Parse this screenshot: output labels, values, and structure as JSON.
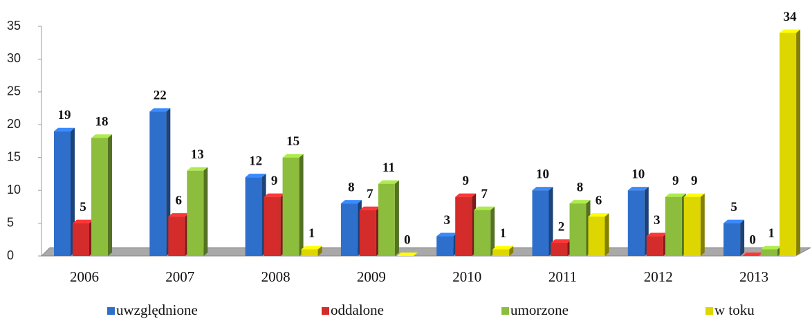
{
  "chart_data": {
    "type": "bar",
    "categories": [
      "2006",
      "2007",
      "2008",
      "2009",
      "2010",
      "2011",
      "2012",
      "2013"
    ],
    "series": [
      {
        "name": "uwzględnione",
        "color": "#2f6fcc",
        "values": [
          19,
          22,
          12,
          8,
          3,
          10,
          10,
          5
        ]
      },
      {
        "name": "oddalone",
        "color": "#d42b2b",
        "values": [
          5,
          6,
          9,
          7,
          9,
          2,
          3,
          0
        ]
      },
      {
        "name": "umorzone",
        "color": "#8cbd3c",
        "values": [
          18,
          13,
          15,
          11,
          7,
          8,
          9,
          1
        ]
      },
      {
        "name": "w toku",
        "color": "#ddd600",
        "values": [
          null,
          null,
          1,
          0,
          1,
          6,
          9,
          34
        ]
      }
    ],
    "ylim": [
      0,
      35
    ],
    "yticks": [
      0,
      5,
      10,
      15,
      20,
      25,
      30,
      35
    ],
    "legend": "bottom"
  }
}
